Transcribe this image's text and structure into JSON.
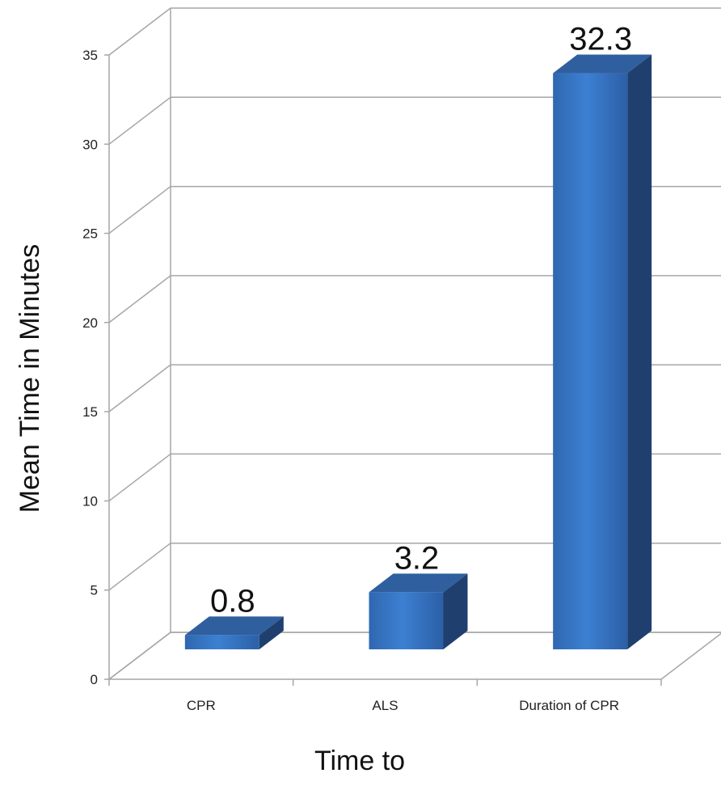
{
  "chart_data": {
    "type": "bar",
    "categories": [
      "CPR",
      "ALS",
      "Duration of CPR"
    ],
    "values": [
      0.8,
      3.2,
      32.3
    ],
    "data_labels": [
      "0.8",
      "3.2",
      "32.3"
    ],
    "title": "",
    "xlabel": "Time to",
    "ylabel": "Mean Time in Minutes",
    "ylim": [
      0,
      35
    ],
    "yticks": [
      0,
      5,
      10,
      15,
      20,
      25,
      30,
      35
    ],
    "grid": true,
    "legend": "none",
    "style": "3d-column",
    "colors": {
      "bar_front": "#3a78c9",
      "bar_top": "#2f5f9f",
      "bar_side": "#1f3f6e",
      "grid": "#a6a6a6"
    }
  }
}
